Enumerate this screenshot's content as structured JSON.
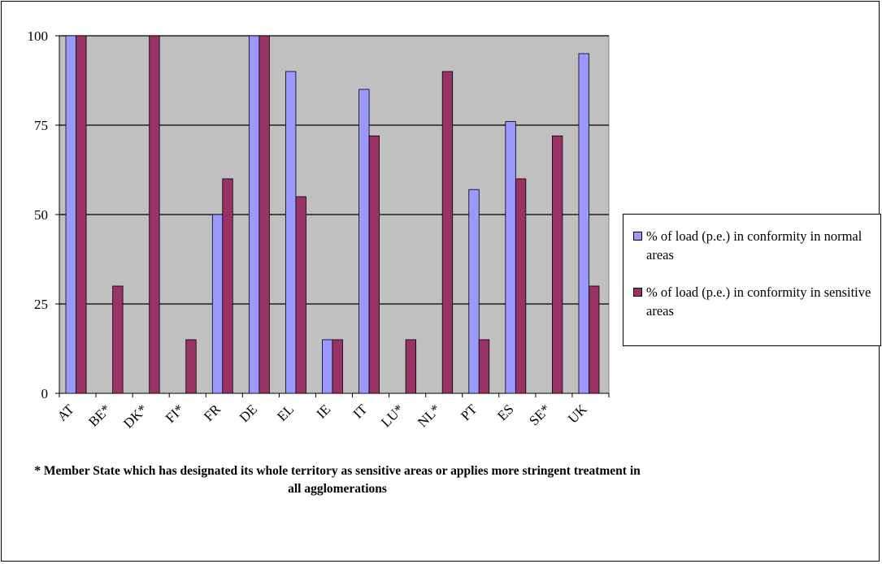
{
  "chart_data": {
    "type": "bar",
    "categories": [
      "AT",
      "BE*",
      "DK*",
      "FI*",
      "FR",
      "DE",
      "EL",
      "IE",
      "IT",
      "LU*",
      "NL*",
      "PT",
      "ES",
      "SE*",
      "UK"
    ],
    "series": [
      {
        "name": "% of load (p.e.) in conformity in normal areas",
        "color": "#9999ff",
        "values": [
          100,
          null,
          null,
          null,
          50,
          100,
          90,
          15,
          85,
          null,
          null,
          57,
          76,
          null,
          95
        ]
      },
      {
        "name": "% of load (p.e.) in conformity in sensitive areas",
        "color": "#993366",
        "values": [
          100,
          30,
          100,
          15,
          60,
          100,
          55,
          15,
          72,
          15,
          90,
          15,
          60,
          72,
          30
        ]
      }
    ],
    "ylim": [
      0,
      100
    ],
    "yticks": [
      "0",
      "25",
      "50",
      "75",
      "100"
    ],
    "grid": true,
    "plot_background": "#c0c0c0",
    "legend": "right",
    "note": "* Member State which has designated its whole territory as sensitive areas or applies more stringent treatment in all agglomerations"
  }
}
